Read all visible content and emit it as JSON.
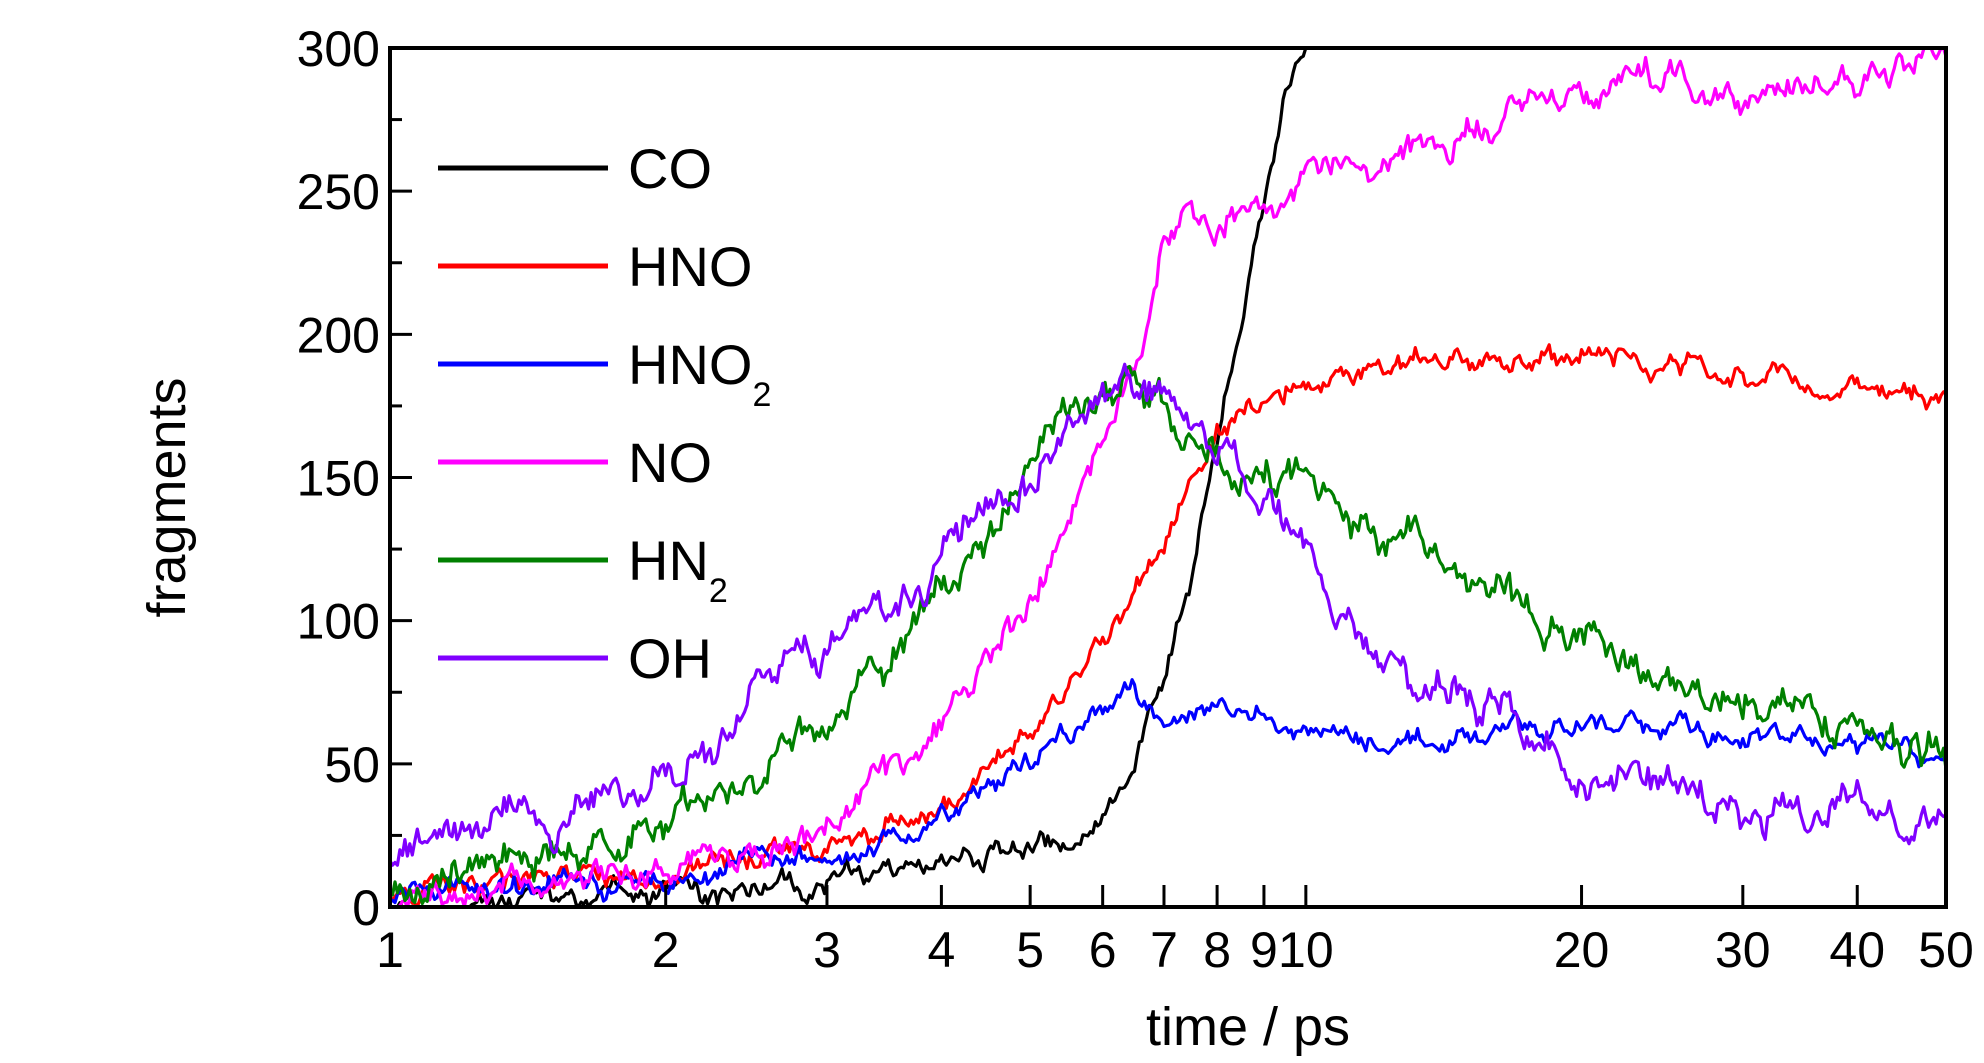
{
  "chart_data": {
    "type": "line",
    "xlabel": "time / ps",
    "ylabel": "fragments",
    "xscale": "log",
    "xlim": [
      1,
      50
    ],
    "ylim": [
      0,
      300
    ],
    "xticks": [
      {
        "v": 1,
        "label": "1"
      },
      {
        "v": 2,
        "label": "2"
      },
      {
        "v": 3,
        "label": "3"
      },
      {
        "v": 4,
        "label": "4"
      },
      {
        "v": 5,
        "label": "5"
      },
      {
        "v": 6,
        "label": "6"
      },
      {
        "v": 7,
        "label": "7"
      },
      {
        "v": 8,
        "label": "8"
      },
      {
        "v": 9,
        "label": "9"
      },
      {
        "v": 10,
        "label": "10"
      },
      {
        "v": 20,
        "label": "20"
      },
      {
        "v": 30,
        "label": "30"
      },
      {
        "v": 40,
        "label": "40"
      },
      {
        "v": 50,
        "label": "50"
      }
    ],
    "yticks": [
      {
        "v": 0,
        "label": "0"
      },
      {
        "v": 50,
        "label": "50"
      },
      {
        "v": 100,
        "label": "100"
      },
      {
        "v": 150,
        "label": "150"
      },
      {
        "v": 200,
        "label": "200"
      },
      {
        "v": 250,
        "label": "250"
      },
      {
        "v": 300,
        "label": "300"
      }
    ],
    "grid": false,
    "legend_position": "top-left",
    "series": [
      {
        "name": "CO",
        "label_main": "CO",
        "label_sub": "",
        "color": "#000000",
        "noise": 3,
        "points": [
          [
            1,
            0
          ],
          [
            1.5,
            2
          ],
          [
            2,
            3
          ],
          [
            2.5,
            5
          ],
          [
            3,
            8
          ],
          [
            3.5,
            12
          ],
          [
            4,
            15
          ],
          [
            4.5,
            18
          ],
          [
            5,
            20
          ],
          [
            5.5,
            22
          ],
          [
            6,
            28
          ],
          [
            6.5,
            50
          ],
          [
            7,
            80
          ],
          [
            7.5,
            115
          ],
          [
            8,
            165
          ],
          [
            8.5,
            210
          ],
          [
            9,
            250
          ],
          [
            9.5,
            285
          ],
          [
            10,
            300
          ]
        ]
      },
      {
        "name": "HNO",
        "label_main": "HNO",
        "label_sub": "",
        "color": "#ff0000",
        "noise": 3,
        "points": [
          [
            1,
            5
          ],
          [
            1.5,
            8
          ],
          [
            2,
            12
          ],
          [
            2.5,
            18
          ],
          [
            3,
            22
          ],
          [
            3.5,
            30
          ],
          [
            4,
            38
          ],
          [
            4.5,
            48
          ],
          [
            5,
            60
          ],
          [
            5.5,
            75
          ],
          [
            6,
            92
          ],
          [
            6.5,
            110
          ],
          [
            7,
            125
          ],
          [
            7.5,
            150
          ],
          [
            8,
            170
          ],
          [
            9,
            178
          ],
          [
            10,
            182
          ],
          [
            12,
            187
          ],
          [
            15,
            190
          ],
          [
            20,
            193
          ],
          [
            25,
            190
          ],
          [
            30,
            186
          ],
          [
            40,
            183
          ],
          [
            50,
            180
          ]
        ]
      },
      {
        "name": "HNO2",
        "label_main": "HNO",
        "label_sub": "2",
        "color": "#0000ff",
        "noise": 3,
        "points": [
          [
            1,
            5
          ],
          [
            1.5,
            7
          ],
          [
            2,
            10
          ],
          [
            2.5,
            13
          ],
          [
            3,
            16
          ],
          [
            3.5,
            22
          ],
          [
            4,
            30
          ],
          [
            4.5,
            42
          ],
          [
            5,
            52
          ],
          [
            5.5,
            62
          ],
          [
            6,
            70
          ],
          [
            6.5,
            72
          ],
          [
            7,
            68
          ],
          [
            8,
            70
          ],
          [
            9,
            67
          ],
          [
            10,
            63
          ],
          [
            12,
            57
          ],
          [
            14,
            56
          ],
          [
            16,
            62
          ],
          [
            20,
            63
          ],
          [
            25,
            64
          ],
          [
            30,
            60
          ],
          [
            40,
            58
          ],
          [
            50,
            57
          ]
        ]
      },
      {
        "name": "NO",
        "label_main": "NO",
        "label_sub": "",
        "color": "#ff00ff",
        "noise": 4,
        "points": [
          [
            1,
            3
          ],
          [
            1.5,
            8
          ],
          [
            2,
            14
          ],
          [
            2.5,
            20
          ],
          [
            3,
            28
          ],
          [
            3.5,
            42
          ],
          [
            4,
            60
          ],
          [
            4.5,
            85
          ],
          [
            5,
            105
          ],
          [
            5.5,
            130
          ],
          [
            6,
            160
          ],
          [
            6.5,
            190
          ],
          [
            7,
            230
          ],
          [
            7.5,
            245
          ],
          [
            8,
            240
          ],
          [
            9,
            245
          ],
          [
            10,
            255
          ],
          [
            12,
            265
          ],
          [
            15,
            272
          ],
          [
            20,
            280
          ],
          [
            25,
            290
          ],
          [
            30,
            287
          ],
          [
            40,
            285
          ],
          [
            50,
            297
          ]
        ]
      },
      {
        "name": "HN2",
        "label_main": "HN",
        "label_sub": "2",
        "color": "#008000",
        "noise": 5,
        "points": [
          [
            1,
            8
          ],
          [
            1.5,
            18
          ],
          [
            2,
            30
          ],
          [
            2.5,
            48
          ],
          [
            3,
            65
          ],
          [
            3.5,
            90
          ],
          [
            4,
            110
          ],
          [
            4.5,
            130
          ],
          [
            5,
            155
          ],
          [
            5.5,
            175
          ],
          [
            6,
            185
          ],
          [
            6.5,
            195
          ],
          [
            7,
            180
          ],
          [
            7.5,
            165
          ],
          [
            8,
            158
          ],
          [
            9,
            150
          ],
          [
            10,
            150
          ],
          [
            12,
            130
          ],
          [
            15,
            115
          ],
          [
            20,
            95
          ],
          [
            25,
            83
          ],
          [
            30,
            72
          ],
          [
            40,
            62
          ],
          [
            50,
            48
          ]
        ]
      },
      {
        "name": "OH",
        "label_main": "OH",
        "label_sub": "",
        "color": "#8000ff",
        "noise": 5,
        "points": [
          [
            1,
            18
          ],
          [
            1.5,
            32
          ],
          [
            2,
            50
          ],
          [
            2.5,
            72
          ],
          [
            3,
            90
          ],
          [
            3.5,
            105
          ],
          [
            4,
            120
          ],
          [
            4.5,
            140
          ],
          [
            5,
            150
          ],
          [
            5.5,
            165
          ],
          [
            6,
            180
          ],
          [
            6.5,
            185
          ],
          [
            7,
            175
          ],
          [
            7.5,
            165
          ],
          [
            8,
            158
          ],
          [
            9,
            145
          ],
          [
            10,
            120
          ],
          [
            12,
            90
          ],
          [
            15,
            72
          ],
          [
            17,
            62
          ],
          [
            20,
            45
          ],
          [
            25,
            40
          ],
          [
            30,
            35
          ],
          [
            40,
            32
          ],
          [
            50,
            32
          ]
        ]
      }
    ]
  }
}
